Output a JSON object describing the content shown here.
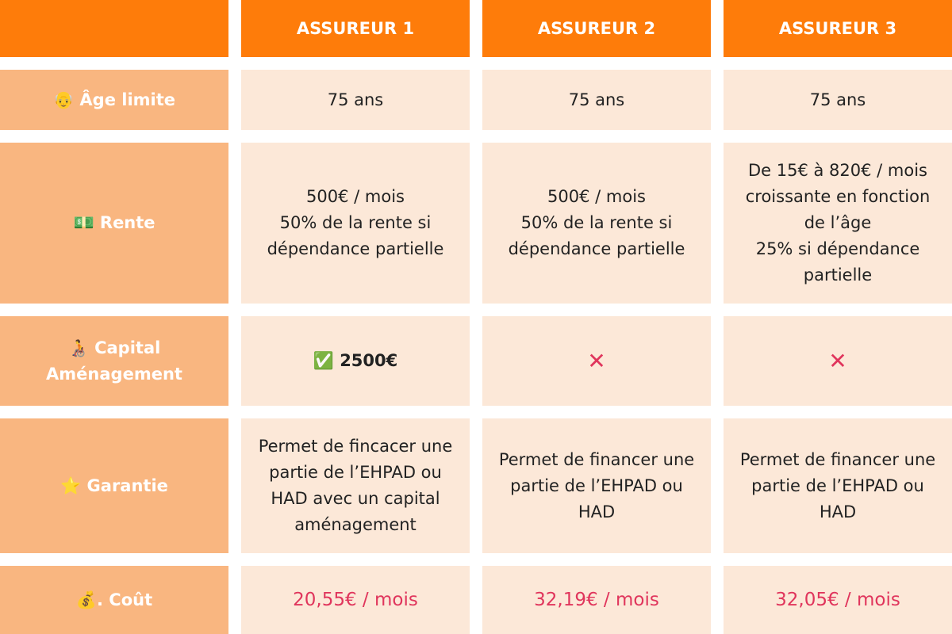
{
  "header": {
    "columns": [
      "ASSUREUR 1",
      "ASSUREUR 2",
      "ASSUREUR 3"
    ]
  },
  "table": {
    "rows": [
      {
        "label": "👴 Âge limite",
        "cells": [
          "75 ans",
          "75 ans",
          "75 ans"
        ]
      },
      {
        "label": "💵 Rente",
        "cells": [
          "500€ / mois\n50% de la rente si\ndépendance partielle",
          "500€ / mois\n50% de la rente si\ndépendance partielle",
          "De 15€ à 820€ / mois\ncroissante en fonction\nde l’âge\n25% si dépendance\npartielle"
        ]
      },
      {
        "label": "🧑‍🦽 Capital\nAménagement",
        "cells": [
          "✅ 2500€",
          "✕",
          "✕"
        ]
      },
      {
        "label": "⭐ Garantie",
        "cells": [
          "Permet de fincacer une\npartie de l’EHPAD ou\nHAD avec un capital\naménagement",
          "Permet de financer une\npartie de l’EHPAD ou\nHAD",
          "Permet de financer une\npartie de l’EHPAD ou\nHAD"
        ]
      },
      {
        "label": "💰. Coût",
        "cells": [
          "20,55€ / mois",
          "32,19€ / mois",
          "32,05€ / mois"
        ]
      }
    ]
  }
}
